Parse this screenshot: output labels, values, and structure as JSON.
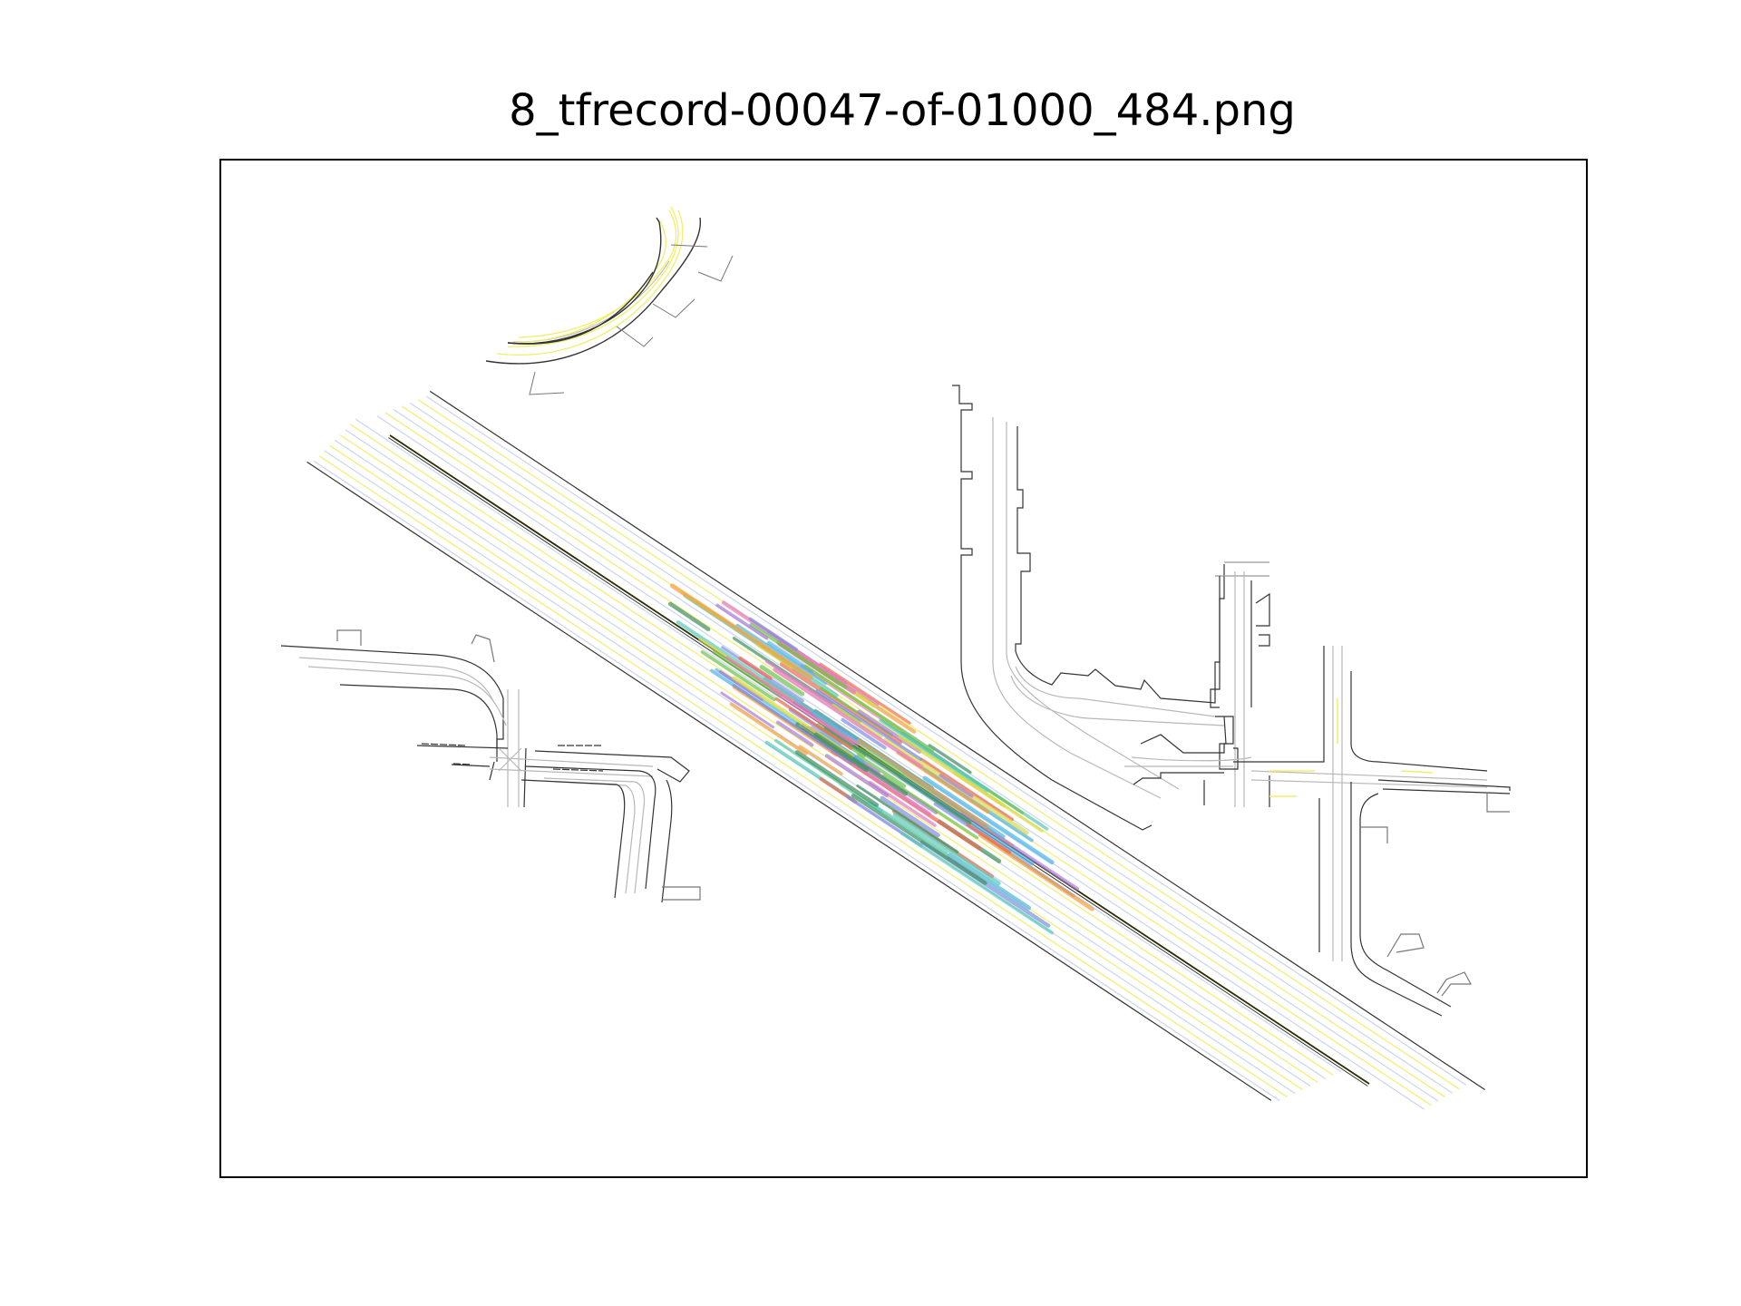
{
  "figure": {
    "title": "8_tfrecord-00047-of-01000_484.png"
  },
  "colors": {
    "road_edge": "#333333",
    "lane_center": "#b8b8b8",
    "lane_marking_yellow": "#f2ee6a",
    "lane_marking_blue": "#c9d4f0",
    "median_line": "#2b2b00",
    "frame": "#000000"
  },
  "trajectory_palette": [
    "#6cc24a",
    "#f26a4f",
    "#a87bd6",
    "#4fb3e8",
    "#f2a03d",
    "#58c9b9",
    "#e07bc0",
    "#3f8f5e",
    "#d9d94a",
    "#7f8fe0"
  ]
}
